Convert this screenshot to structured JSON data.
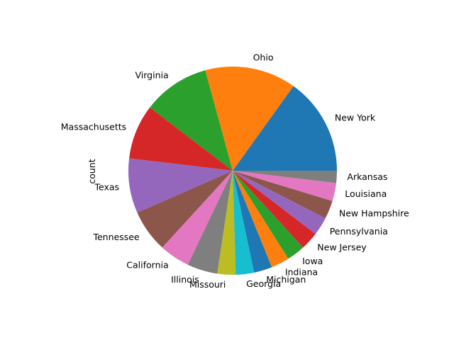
{
  "chart_data": {
    "type": "pie",
    "title": "",
    "ylabel": "count",
    "start_angle_deg": 0,
    "direction": "counterclockwise",
    "slices": [
      {
        "label": "New York",
        "value": 16,
        "color": "#1f77b4"
      },
      {
        "label": "Ohio",
        "value": 15,
        "color": "#ff7f0e"
      },
      {
        "label": "Virginia",
        "value": 11,
        "color": "#2ca02c"
      },
      {
        "label": "Massachusetts",
        "value": 9,
        "color": "#d62728"
      },
      {
        "label": "Texas",
        "value": 9,
        "color": "#9467bd"
      },
      {
        "label": "Tennessee",
        "value": 7,
        "color": "#8c564b"
      },
      {
        "label": "California",
        "value": 5,
        "color": "#e377c2"
      },
      {
        "label": "Illinois",
        "value": 5,
        "color": "#7f7f7f"
      },
      {
        "label": "Missouri",
        "value": 3,
        "color": "#bcbd22"
      },
      {
        "label": "Georgia",
        "value": 3,
        "color": "#17becf"
      },
      {
        "label": "Michigan",
        "value": 3,
        "color": "#1f77b4"
      },
      {
        "label": "Indiana",
        "value": 3,
        "color": "#ff7f0e"
      },
      {
        "label": "Iowa",
        "value": 3,
        "color": "#2ca02c"
      },
      {
        "label": "New Jersey",
        "value": 3,
        "color": "#d62728"
      },
      {
        "label": "Pennsylvania",
        "value": 3,
        "color": "#9467bd"
      },
      {
        "label": "New Hampshire",
        "value": 3,
        "color": "#8c564b"
      },
      {
        "label": "Louisiana",
        "value": 3,
        "color": "#e377c2"
      },
      {
        "label": "Arkansas",
        "value": 2,
        "color": "#7f7f7f"
      }
    ]
  }
}
